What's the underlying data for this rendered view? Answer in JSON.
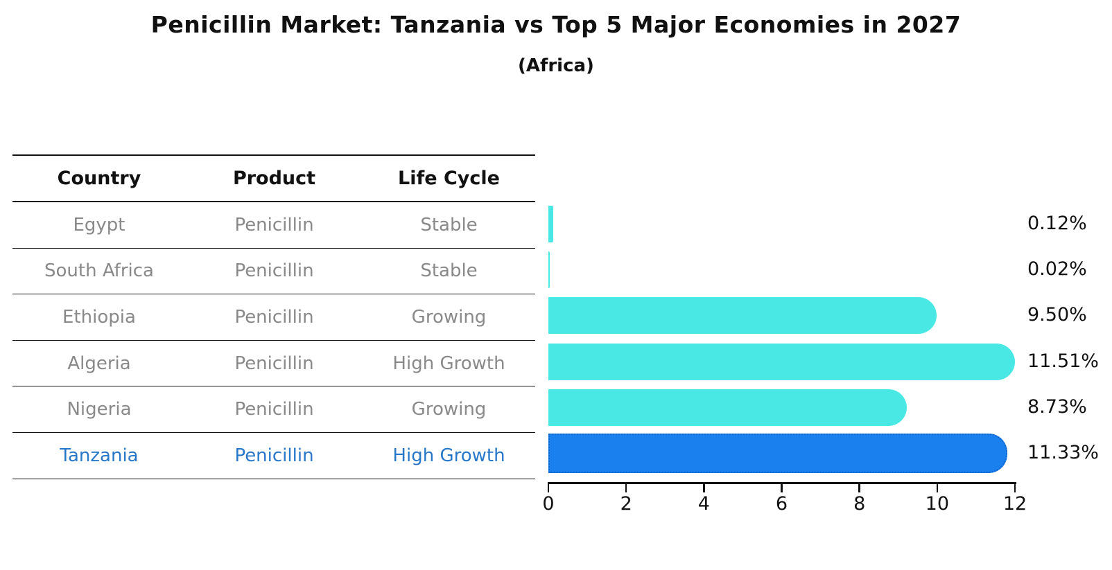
{
  "title": "Penicillin Market: Tanzania vs Top 5 Major Economies in 2027",
  "subtitle": "(Africa)",
  "table": {
    "headers": [
      "Country",
      "Product",
      "Life Cycle"
    ],
    "rows": [
      {
        "country": "Egypt",
        "product": "Penicillin",
        "life_cycle": "Stable",
        "highlight": false
      },
      {
        "country": "South Africa",
        "product": "Penicillin",
        "life_cycle": "Stable",
        "highlight": false
      },
      {
        "country": "Ethiopia",
        "product": "Penicillin",
        "life_cycle": "Growing",
        "highlight": false
      },
      {
        "country": "Algeria",
        "product": "Penicillin",
        "life_cycle": "High Growth",
        "highlight": false
      },
      {
        "country": "Nigeria",
        "product": "Penicillin",
        "life_cycle": "Growing",
        "highlight": false
      },
      {
        "country": "Tanzania",
        "product": "Penicillin",
        "life_cycle": "High Growth",
        "highlight": true
      }
    ]
  },
  "chart_data": {
    "type": "bar",
    "orientation": "horizontal",
    "title": "Penicillin Market: Tanzania vs Top 5 Major Economies in 2027 (Africa)",
    "categories": [
      "Egypt",
      "South Africa",
      "Ethiopia",
      "Algeria",
      "Nigeria",
      "Tanzania"
    ],
    "values": [
      0.12,
      0.02,
      9.5,
      11.51,
      8.73,
      11.33
    ],
    "value_labels": [
      "0.12%",
      "0.02%",
      "9.50%",
      "11.51%",
      "8.73%",
      "11.33%"
    ],
    "unit": "percent",
    "x_ticks": [
      0,
      2,
      4,
      6,
      8,
      10,
      12
    ],
    "xlim": [
      0,
      12
    ],
    "grid": false,
    "legend": false,
    "highlight_index": 5,
    "colors": {
      "default_bar": "#49E8E4",
      "highlight_bar": "#1A80EE",
      "highlight_bar_border": "#0E62C8",
      "highlight_text": "#2878C9",
      "row_text": "#898989",
      "axis": "#111111"
    }
  }
}
